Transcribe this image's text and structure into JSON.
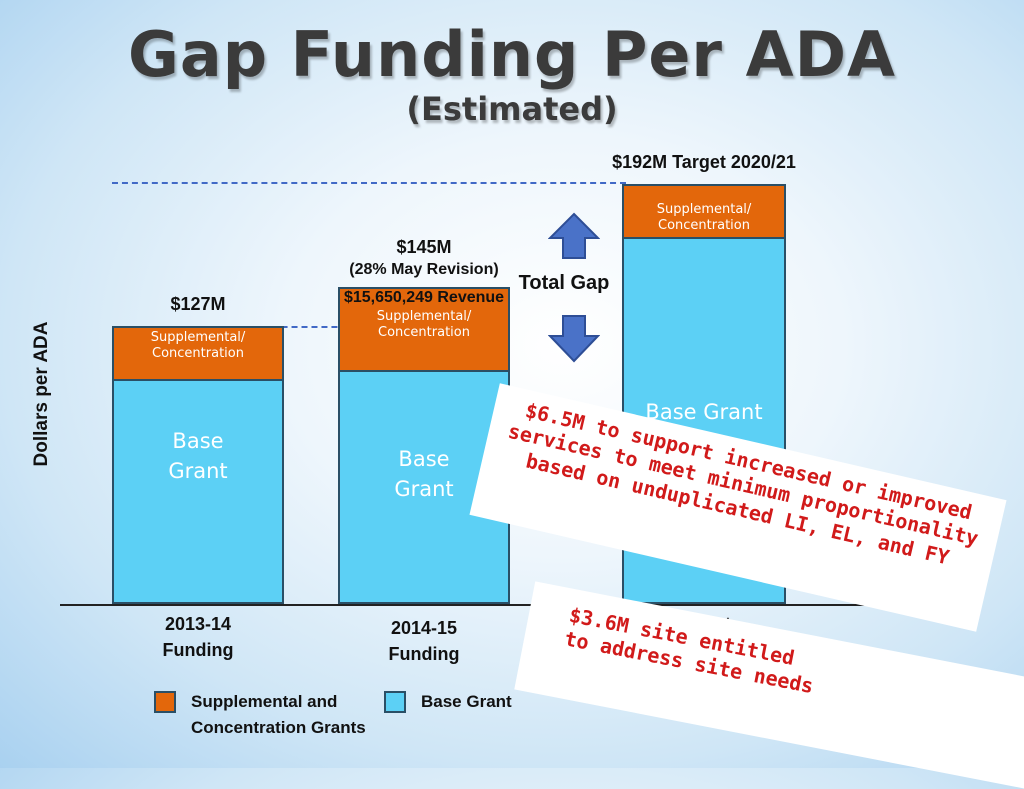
{
  "title": "Gap Funding Per ADA",
  "subtitle": "(Estimated)",
  "colors": {
    "supplemental": "#e3670b",
    "base": "#5cd0f5",
    "arrow": "#4a72c8",
    "note_text": "#d11a1a",
    "dash": "#4169c6"
  },
  "chart_data": {
    "type": "bar",
    "stacked": true,
    "ylabel": "Dollars per ADA",
    "categories": [
      "2013-14 Funding",
      "2014-15 Funding",
      "Target"
    ],
    "series": [
      {
        "name": "Base Grant",
        "values": [
          103,
          107,
          168
        ]
      },
      {
        "name": "Supplemental and Concentration Grants",
        "values": [
          24,
          38,
          24
        ]
      }
    ],
    "totals": [
      127,
      145,
      192
    ],
    "ylim": [
      0,
      192
    ],
    "bar_labels": [
      [
        "$127M"
      ],
      [
        "$145M",
        "(28% May Revision)",
        "$15,650,249 Revenue"
      ],
      [
        "$192M Target 2020/21"
      ]
    ],
    "segment_labels": {
      "supplemental": "Supplemental/ Concentration",
      "base": "Base Grant"
    },
    "category_labels": [
      [
        "2013-14",
        "Funding"
      ],
      [
        "2014-15",
        "Funding"
      ],
      [
        "Target"
      ]
    ],
    "gap_label": "Total Gap",
    "legend": [
      "Supplemental and Concentration Grants",
      "Base Grant"
    ],
    "legend_lines": [
      [
        "Supplemental and",
        "Concentration Grants"
      ],
      [
        "Base Grant"
      ]
    ]
  },
  "notes": [
    [
      "$6.5M to support increased or improved",
      "services to meet minimum proportionality",
      "based on unduplicated LI, EL, and FY"
    ],
    [
      "$3.6M site entitled",
      "to address site needs"
    ]
  ]
}
